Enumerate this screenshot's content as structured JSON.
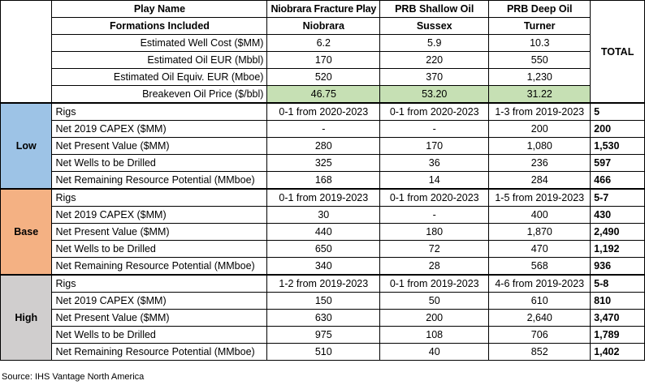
{
  "header": {
    "play_name_label": "Play Name",
    "formations_label": "Formations Included",
    "total_label": "TOTAL",
    "plays": [
      {
        "name": "Niobrara Fracture Play",
        "formation": "Niobrara"
      },
      {
        "name": "PRB Shallow Oil",
        "formation": "Sussex"
      },
      {
        "name": "PRB Deep Oil",
        "formation": "Turner"
      }
    ]
  },
  "properties": [
    {
      "label": "Estimated Well Cost ($MM)",
      "values": [
        "6.2",
        "5.9",
        "10.3"
      ]
    },
    {
      "label": "Estimated Oil EUR (Mbbl)",
      "values": [
        "170",
        "220",
        "550"
      ]
    },
    {
      "label": "Estimated Oil Equiv. EUR (Mboe)",
      "values": [
        "520",
        "370",
        "1,230"
      ]
    },
    {
      "label": "Breakeven Oil Price ($/bbl)",
      "values": [
        "46.75",
        "53.20",
        "31.22"
      ]
    }
  ],
  "scenarios": [
    {
      "name": "Low",
      "rows": [
        {
          "label": "Rigs",
          "values": [
            "0-1 from 2020-2023",
            "0-1 from 2020-2023",
            "1-3 from 2019-2023"
          ],
          "total": "5"
        },
        {
          "label": "Net 2019 CAPEX ($MM)",
          "values": [
            "-",
            "-",
            "200"
          ],
          "total": "200"
        },
        {
          "label": "Net Present Value ($MM)",
          "values": [
            "280",
            "170",
            "1,080"
          ],
          "total": "1,530"
        },
        {
          "label": "Net Wells to be Drilled",
          "values": [
            "325",
            "36",
            "236"
          ],
          "total": "597"
        },
        {
          "label": "Net Remaining Resource Potential (MMboe)",
          "values": [
            "168",
            "14",
            "284"
          ],
          "total": "466"
        }
      ]
    },
    {
      "name": "Base",
      "rows": [
        {
          "label": "Rigs",
          "values": [
            "0-1 from 2019-2023",
            "0-1 from 2020-2023",
            "1-5 from 2019-2023"
          ],
          "total": "5-7"
        },
        {
          "label": "Net 2019 CAPEX ($MM)",
          "values": [
            "30",
            "-",
            "400"
          ],
          "total": "430"
        },
        {
          "label": "Net Present Value ($MM)",
          "values": [
            "440",
            "180",
            "1,870"
          ],
          "total": "2,490"
        },
        {
          "label": "Net Wells to be Drilled",
          "values": [
            "650",
            "72",
            "470"
          ],
          "total": "1,192"
        },
        {
          "label": "Net Remaining Resource Potential (MMboe)",
          "values": [
            "340",
            "28",
            "568"
          ],
          "total": "936"
        }
      ]
    },
    {
      "name": "High",
      "rows": [
        {
          "label": "Rigs",
          "values": [
            "1-2 from 2019-2023",
            "0-1 from 2019-2023",
            "4-6 from 2019-2023"
          ],
          "total": "5-8"
        },
        {
          "label": "Net 2019 CAPEX ($MM)",
          "values": [
            "150",
            "50",
            "610"
          ],
          "total": "810"
        },
        {
          "label": "Net Present Value ($MM)",
          "values": [
            "630",
            "200",
            "2,640"
          ],
          "total": "3,470"
        },
        {
          "label": "Net Wells to be Drilled",
          "values": [
            "975",
            "108",
            "706"
          ],
          "total": "1,789"
        },
        {
          "label": "Net Remaining Resource Potential (MMboe)",
          "values": [
            "510",
            "40",
            "852"
          ],
          "total": "1,402"
        }
      ]
    }
  ],
  "source": "Source: IHS Vantage North America",
  "colors": {
    "low": "#9dc3e6",
    "base": "#f4b183",
    "high": "#d0cece",
    "breakeven": "#c6e0b4"
  }
}
